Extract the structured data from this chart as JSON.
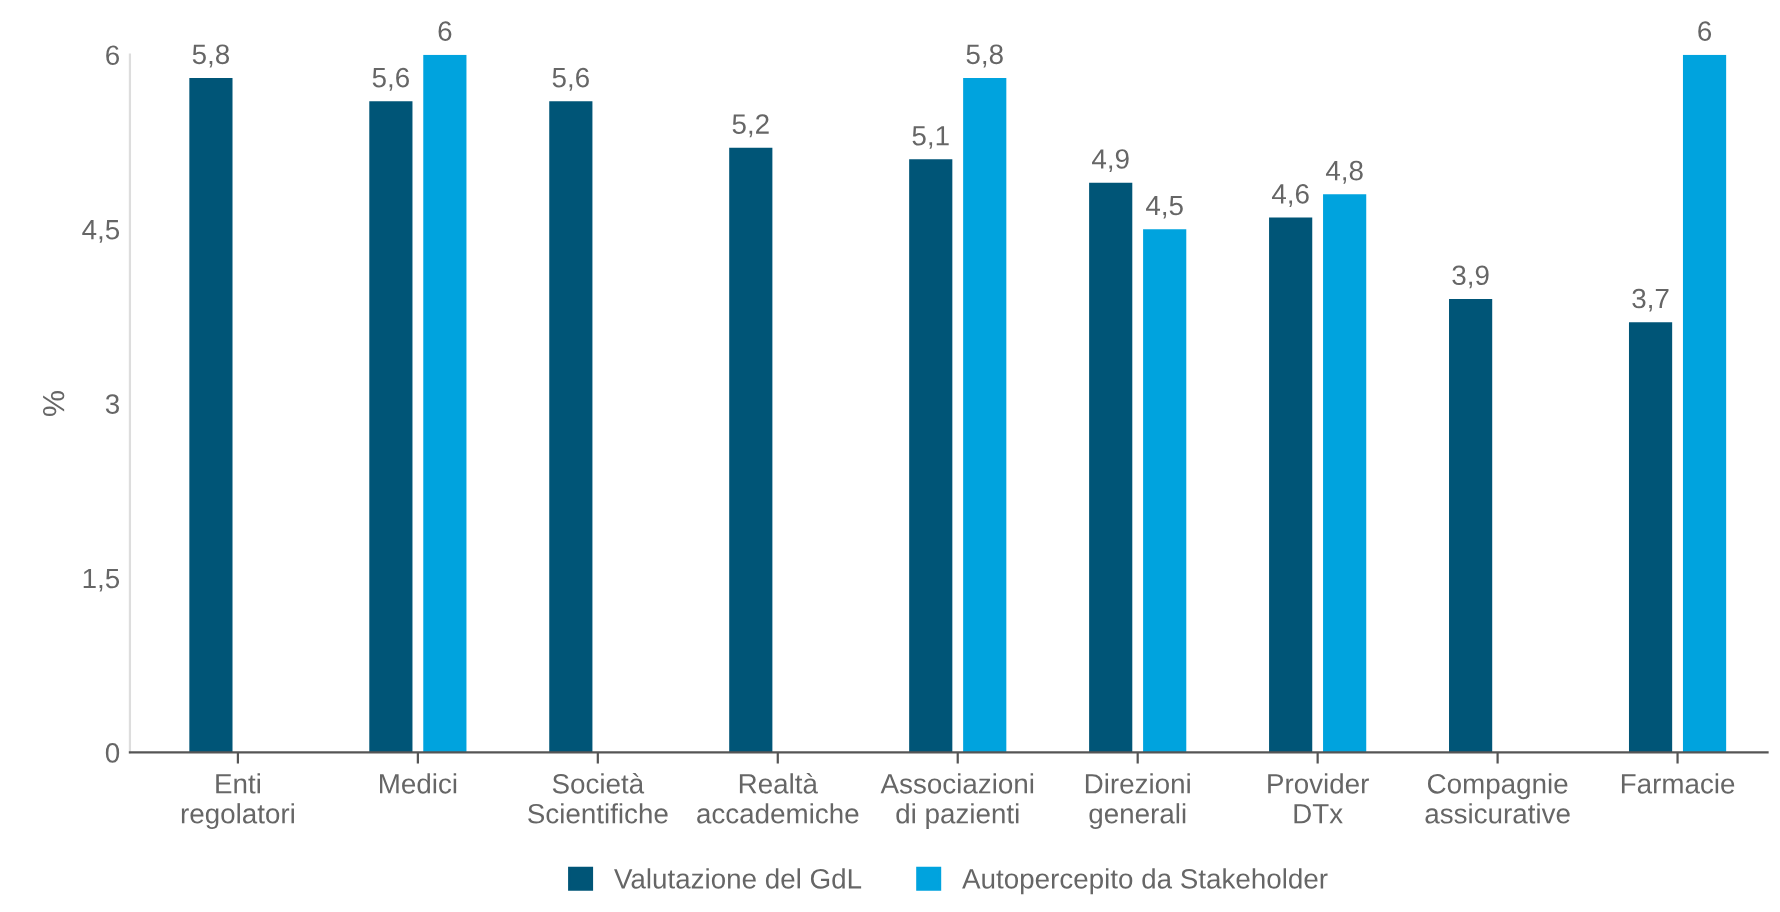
{
  "chart_data": {
    "type": "bar",
    "ylabel": "%",
    "categories": [
      "Enti\nregolatori",
      "Medici",
      "Società\nScientifiche",
      "Realtà\naccademiche",
      "Associazioni\ndi pazienti",
      "Direzioni\ngenerali",
      "Provider\nDTx",
      "Compagnie\nassicurative",
      "Farmacie"
    ],
    "series": [
      {
        "name": "Valutazione del GdL",
        "color": "#005577",
        "values": [
          5.8,
          5.6,
          5.6,
          5.2,
          5.1,
          4.9,
          4.6,
          3.9,
          3.7
        ],
        "value_labels": [
          "5,8",
          "5,6",
          "5,6",
          "5,2",
          "5,1",
          "4,9",
          "4,6",
          "3,9",
          "3,7"
        ]
      },
      {
        "name": "Autopercepito da Stakeholder",
        "color": "#00a3de",
        "values": [
          null,
          6,
          null,
          null,
          5.8,
          4.5,
          4.8,
          null,
          6
        ],
        "value_labels": [
          null,
          "6",
          null,
          null,
          "5,8",
          "4,5",
          "4,8",
          null,
          "6"
        ]
      }
    ],
    "ylim": [
      0,
      6
    ],
    "yticks": [
      0,
      {
        "value": 1.5,
        "label": "1,5"
      },
      3,
      {
        "value": 4.5,
        "label": "4,5"
      },
      6
    ],
    "grid": false,
    "legend": "bottom"
  }
}
